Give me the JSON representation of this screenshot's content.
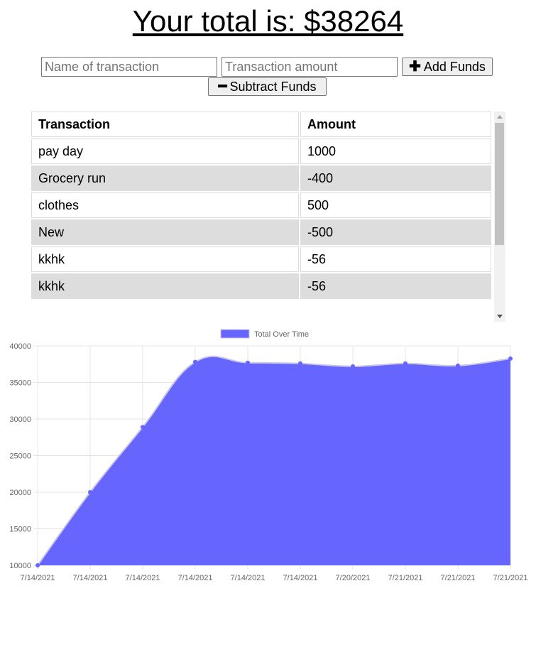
{
  "header": {
    "total_text": "Your total is: $38264"
  },
  "form": {
    "name_placeholder": "Name of transaction",
    "amount_placeholder": "Transaction amount",
    "add_label": "Add Funds",
    "add_icon": "plus-icon",
    "subtract_label": "Subtract Funds",
    "subtract_icon": "minus-icon"
  },
  "table": {
    "headers": [
      "Transaction",
      "Amount"
    ],
    "rows": [
      {
        "name": "pay day",
        "amount": "1000"
      },
      {
        "name": "Grocery run",
        "amount": "-400"
      },
      {
        "name": "clothes",
        "amount": "500"
      },
      {
        "name": "New",
        "amount": "-500"
      },
      {
        "name": "kkhk",
        "amount": "-56"
      },
      {
        "name": "kkhk",
        "amount": "-56"
      }
    ]
  },
  "chart_data": {
    "type": "area",
    "title": "",
    "legend": {
      "position": "top",
      "entries": [
        "Total Over Time"
      ]
    },
    "series": [
      {
        "name": "Total Over Time",
        "color": "#6666ff",
        "values": [
          10000,
          20000,
          28900,
          37800,
          37700,
          37600,
          37200,
          37600,
          37300,
          38264
        ]
      }
    ],
    "x": [
      "7/14/2021",
      "7/14/2021",
      "7/14/2021",
      "7/14/2021",
      "7/14/2021",
      "7/14/2021",
      "7/20/2021",
      "7/21/2021",
      "7/21/2021",
      "7/21/2021"
    ],
    "y_ticks": [
      "40000",
      "35000",
      "30000",
      "25000",
      "20000",
      "15000",
      "10000"
    ],
    "ylim": [
      10000,
      40000
    ],
    "grid": true,
    "xlabel": "",
    "ylabel": ""
  }
}
